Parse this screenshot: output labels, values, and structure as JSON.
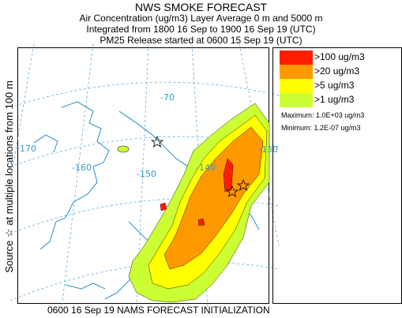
{
  "header": {
    "title": "NWS SMOKE FORECAST",
    "line1": "Air Concentration (ug/m3) Layer Average     0 m and  5000 m",
    "line2": "Integrated from 1800 16 Sep to 1900 16 Sep 19 (UTC)",
    "line3": "PM25 Release started at 0600 15 Sep 19 (UTC)"
  },
  "side_label": "Source ☆  at multiple locations    from   100 m",
  "footer": "0600 16 Sep 19 NAMS FORECAST INITIALIZATION",
  "legend": {
    "items": [
      {
        "label": ">100 ug/m3",
        "color": "#ff1f00"
      },
      {
        "label": ">20 ug/m3",
        "color": "#ff9900"
      },
      {
        "label": ">5 ug/m3",
        "color": "#ffff00"
      },
      {
        "label": ">1 ug/m3",
        "color": "#ccff33"
      }
    ],
    "maximum": "Maximum: 1.0E+03 ug/m3",
    "minimum": "Minimum: 1.2E-07 ug/m3"
  },
  "map": {
    "longitude_labels": [
      "-170",
      "-160",
      "-150",
      "-140",
      "-70",
      "-130"
    ],
    "graticule_color": "#66aadd",
    "coast_color": "#3399cc"
  }
}
